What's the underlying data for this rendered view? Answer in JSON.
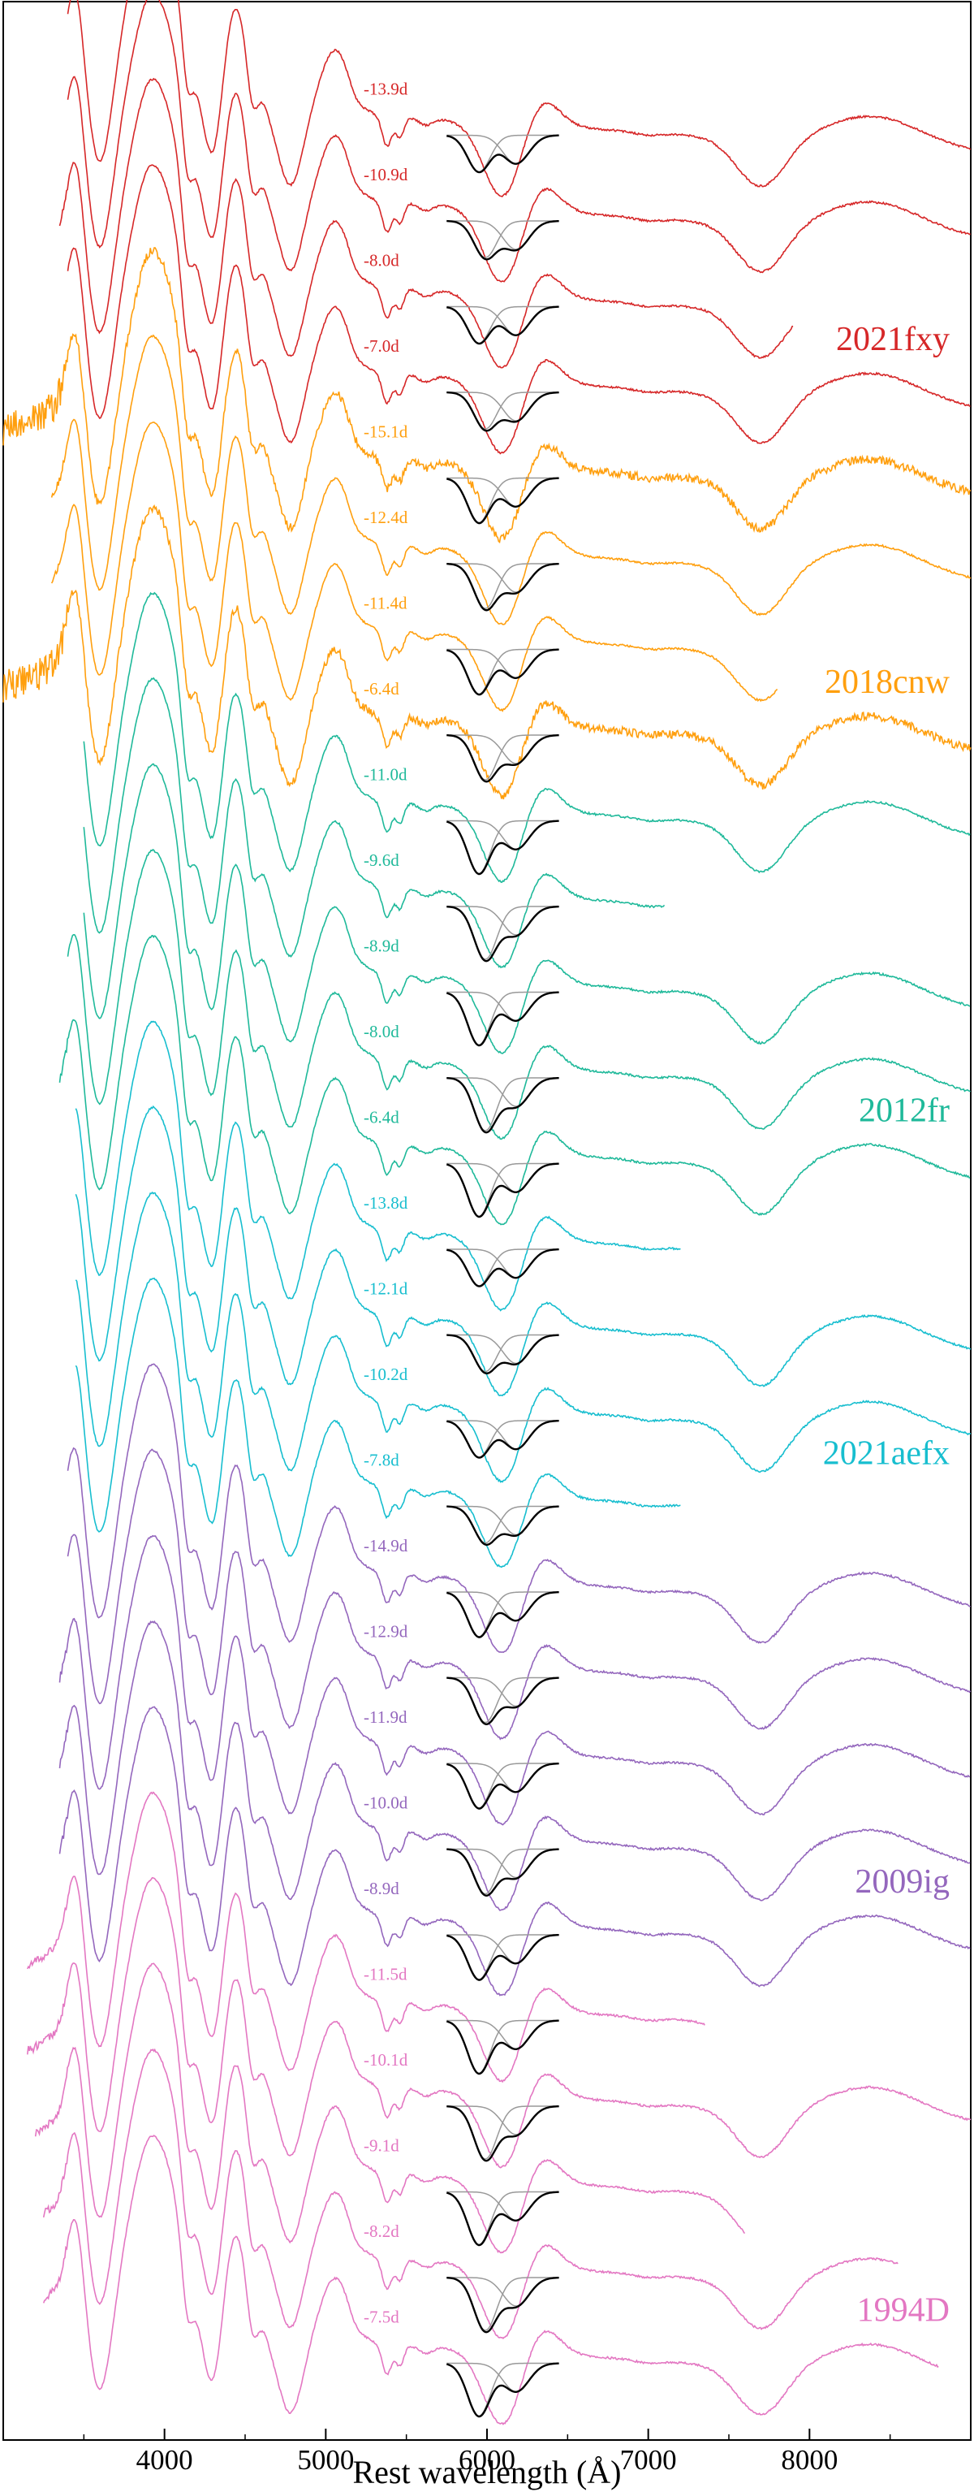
{
  "chart_data": {
    "type": "line",
    "title": "",
    "xlabel": "Rest wavelength (Å)",
    "ylabel": "",
    "xlim": [
      3000,
      9000
    ],
    "xticks": [
      4000,
      5000,
      6000,
      7000,
      8000
    ],
    "xtick_labels": [
      "4000",
      "5000",
      "6000",
      "7000",
      "8000"
    ],
    "grid": false,
    "legend": "none",
    "groups": [
      {
        "name": "2021fxy",
        "color": "#d62728",
        "spectra": [
          {
            "epoch": "-13.9d",
            "wave_range": [
              3400,
              9000
            ]
          },
          {
            "epoch": "-10.9d",
            "wave_range": [
              3400,
              9000
            ]
          },
          {
            "epoch": "-8.0d",
            "wave_range": [
              3350,
              7900
            ]
          },
          {
            "epoch": "-7.0d",
            "wave_range": [
              3400,
              9000
            ]
          }
        ]
      },
      {
        "name": "2018cnw",
        "color": "#ff9f0e",
        "spectra": [
          {
            "epoch": "-15.1d",
            "wave_range": [
              3000,
              9000
            ]
          },
          {
            "epoch": "-12.4d",
            "wave_range": [
              3300,
              9000
            ]
          },
          {
            "epoch": "-11.4d",
            "wave_range": [
              3300,
              7800
            ]
          },
          {
            "epoch": "-6.4d",
            "wave_range": [
              3000,
              9000
            ]
          }
        ]
      },
      {
        "name": "2012fr",
        "color": "#1fb99a",
        "spectra": [
          {
            "epoch": "-11.0d",
            "wave_range": [
              3500,
              9000
            ]
          },
          {
            "epoch": "-9.6d",
            "wave_range": [
              3500,
              7100
            ]
          },
          {
            "epoch": "-8.9d",
            "wave_range": [
              3500,
              9000
            ]
          },
          {
            "epoch": "-8.0d",
            "wave_range": [
              3400,
              9000
            ]
          },
          {
            "epoch": "-6.4d",
            "wave_range": [
              3350,
              9000
            ]
          }
        ]
      },
      {
        "name": "2021aefx",
        "color": "#17becf",
        "spectra": [
          {
            "epoch": "-13.8d",
            "wave_range": [
              3450,
              7200
            ]
          },
          {
            "epoch": "-12.1d",
            "wave_range": [
              3450,
              9000
            ]
          },
          {
            "epoch": "-10.2d",
            "wave_range": [
              3450,
              9000
            ]
          },
          {
            "epoch": "-7.8d",
            "wave_range": [
              3450,
              7200
            ]
          }
        ]
      },
      {
        "name": "2009ig",
        "color": "#9467bd",
        "spectra": [
          {
            "epoch": "-14.9d",
            "wave_range": [
              3400,
              9000
            ]
          },
          {
            "epoch": "-12.9d",
            "wave_range": [
              3400,
              9000
            ]
          },
          {
            "epoch": "-11.9d",
            "wave_range": [
              3350,
              9000
            ]
          },
          {
            "epoch": "-10.0d",
            "wave_range": [
              3350,
              9000
            ]
          },
          {
            "epoch": "-8.9d",
            "wave_range": [
              3350,
              9000
            ]
          }
        ]
      },
      {
        "name": "1994D",
        "color": "#e377c2",
        "spectra": [
          {
            "epoch": "-11.5d",
            "wave_range": [
              3150,
              7350
            ]
          },
          {
            "epoch": "-10.1d",
            "wave_range": [
              3150,
              9000
            ]
          },
          {
            "epoch": "-9.1d",
            "wave_range": [
              3200,
              7600
            ]
          },
          {
            "epoch": "-8.2d",
            "wave_range": [
              3250,
              8550
            ]
          },
          {
            "epoch": "-7.5d",
            "wave_range": [
              3250,
              8800
            ]
          }
        ]
      }
    ]
  }
}
